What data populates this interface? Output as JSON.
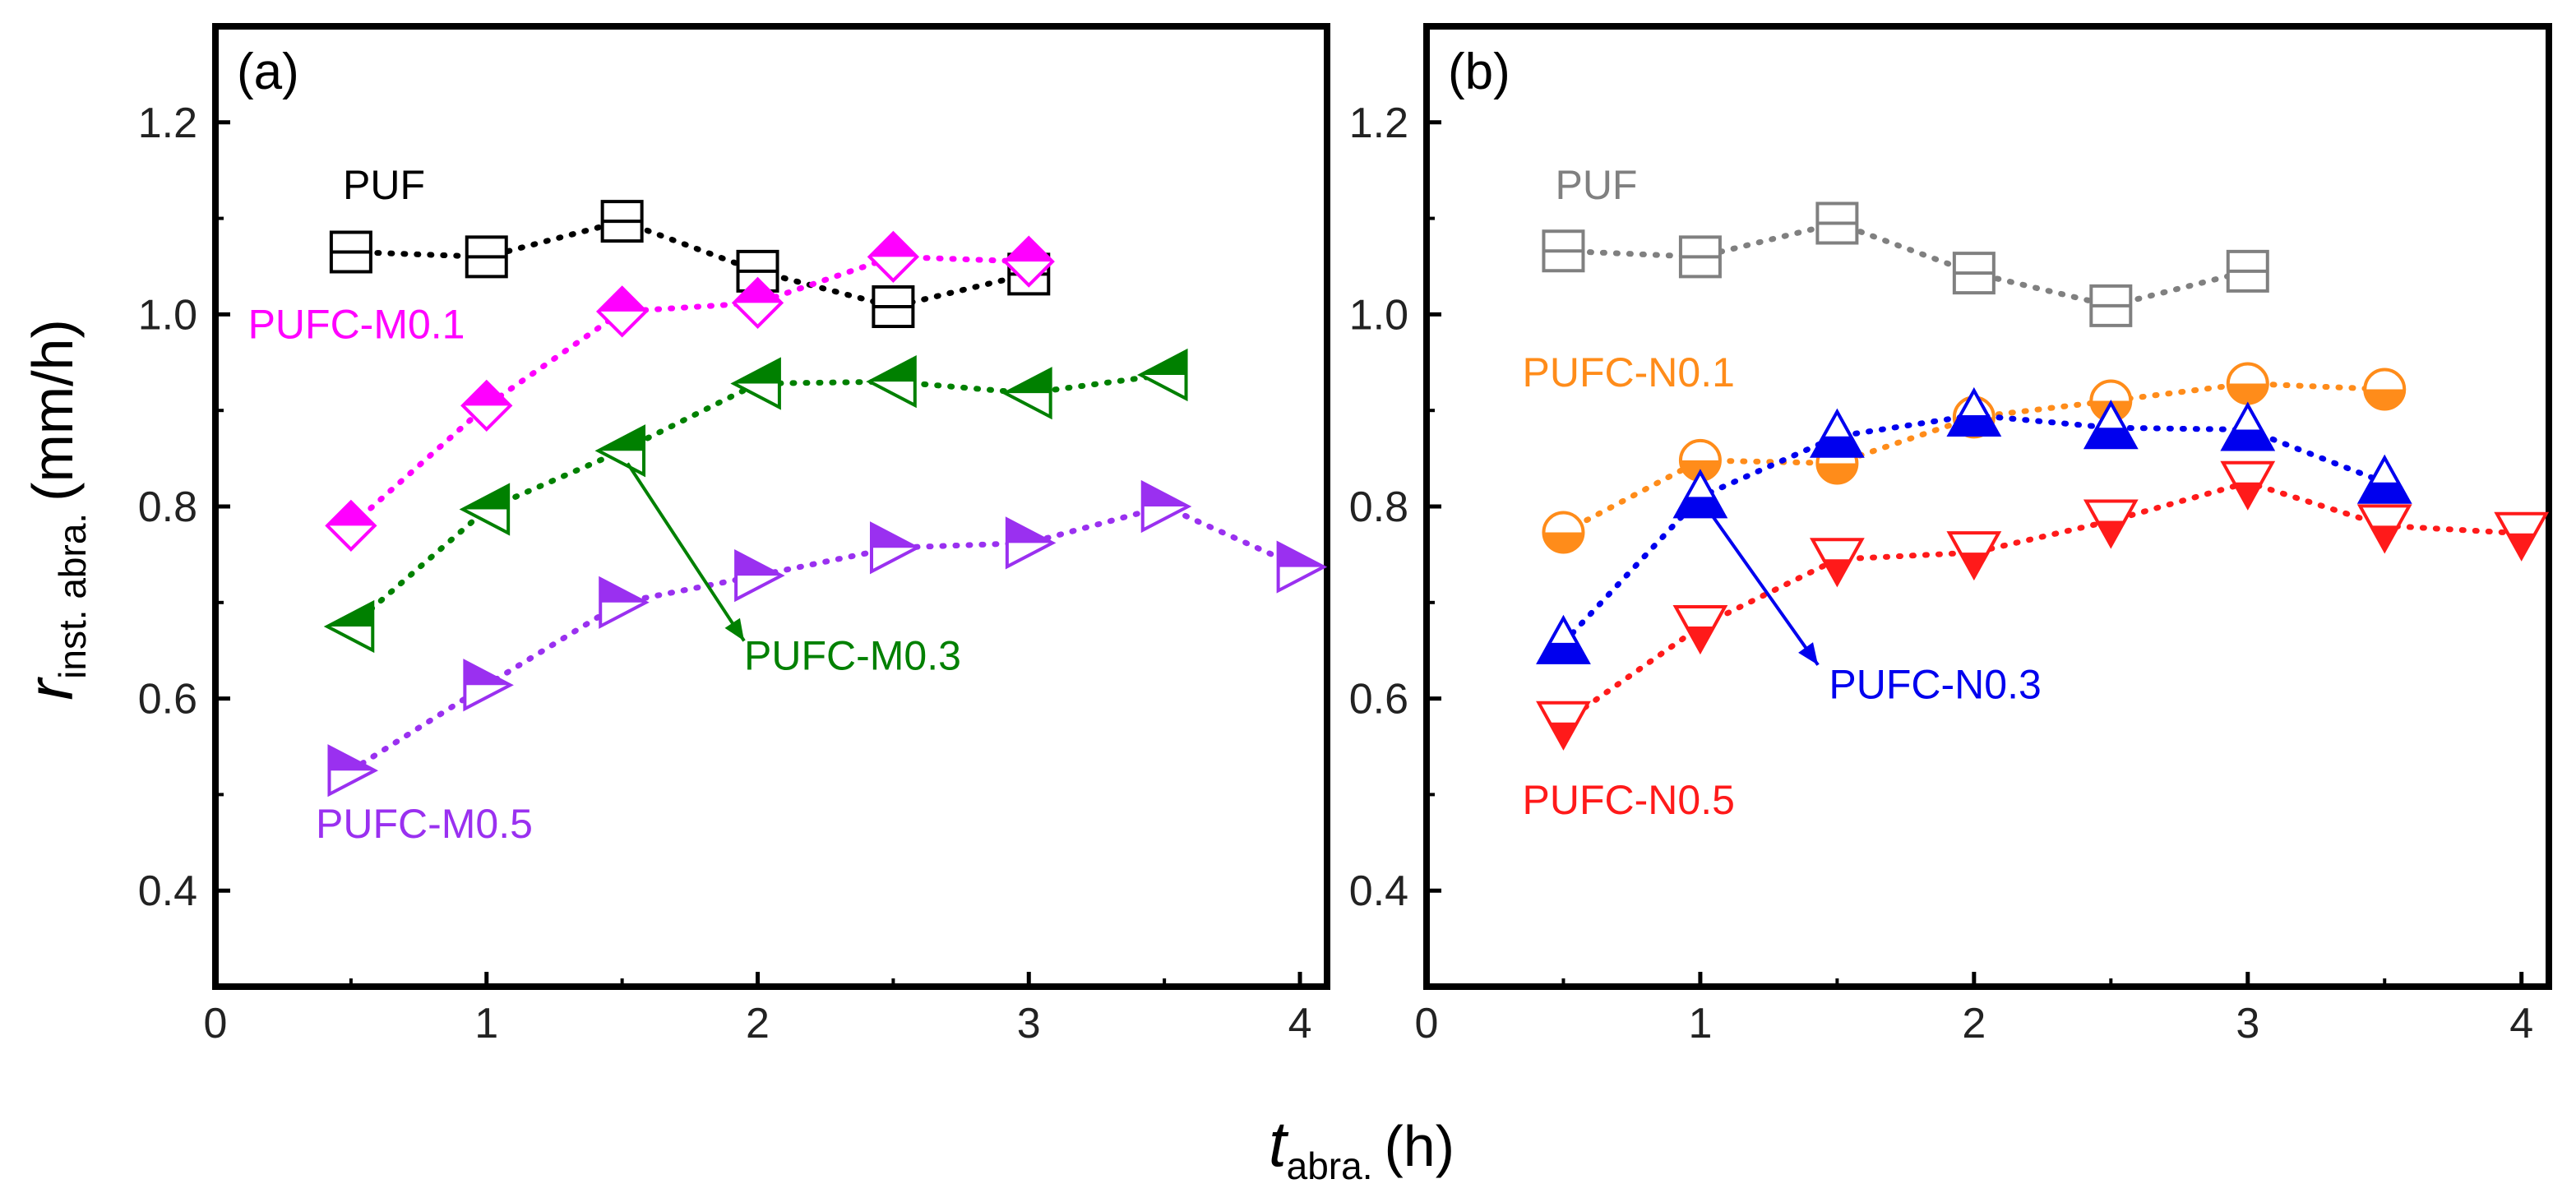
{
  "axes": {
    "y_label": {
      "var": "r",
      "sub": "inst. abra.",
      "unit": "(mm/h)"
    },
    "x_label": {
      "var": "t",
      "sub": "abra.",
      "unit": "(h)"
    }
  },
  "chart_data": [
    {
      "type": "scatter",
      "panel": "(a)",
      "xlim": [
        0,
        4.1
      ],
      "ylim": [
        0.3,
        1.3
      ],
      "xticks": [
        0,
        1,
        2,
        3,
        4
      ],
      "yticks": [
        0.4,
        0.6,
        0.8,
        1.0,
        1.2
      ],
      "ytick_labels": [
        "0.4",
        "0.6",
        "0.8",
        "1.0",
        "1.2"
      ],
      "grid": false,
      "series": [
        {
          "name": "PUF",
          "color": "#000000",
          "marker": "square-hline",
          "x": [
            0.5,
            1.0,
            1.5,
            2.0,
            2.5,
            3.0
          ],
          "y": [
            1.065,
            1.06,
            1.097,
            1.045,
            1.008,
            1.042
          ]
        },
        {
          "name": "PUFC-M0.1",
          "color": "#ff00ff",
          "marker": "diamond-tophalf",
          "x": [
            0.5,
            1.0,
            1.5,
            2.0,
            2.5,
            3.0
          ],
          "y": [
            0.78,
            0.905,
            1.003,
            1.012,
            1.06,
            1.055
          ]
        },
        {
          "name": "PUFC-M0.3",
          "color": "#008000",
          "marker": "tri-left-tophalf",
          "x": [
            0.5,
            1.0,
            1.5,
            2.0,
            2.5,
            3.0,
            3.5
          ],
          "y": [
            0.675,
            0.797,
            0.858,
            0.928,
            0.93,
            0.918,
            0.937
          ]
        },
        {
          "name": "PUFC-M0.5",
          "color": "#9a30f0",
          "marker": "tri-right-tophalf",
          "x": [
            0.5,
            1.0,
            1.5,
            2.0,
            2.5,
            3.0,
            3.5,
            4.0
          ],
          "y": [
            0.525,
            0.614,
            0.7,
            0.728,
            0.757,
            0.762,
            0.8,
            0.737
          ]
        }
      ],
      "annotations": [
        {
          "text": "PUF",
          "series": 0,
          "lx": 0.47,
          "ly": 1.12
        },
        {
          "text": "PUFC-M0.1",
          "series": 1,
          "lx": 0.12,
          "ly": 0.975
        },
        {
          "text": "PUFC-M0.3",
          "series": 2,
          "lx": 1.95,
          "ly": 0.63,
          "arrow_from": [
            1.52,
            0.845
          ],
          "arrow_to": [
            1.95,
            0.66
          ]
        },
        {
          "text": "PUFC-M0.5",
          "series": 3,
          "lx": 0.37,
          "ly": 0.455
        }
      ]
    },
    {
      "type": "scatter",
      "panel": "(b)",
      "xlim": [
        0,
        4.1
      ],
      "ylim": [
        0.3,
        1.3
      ],
      "xticks": [
        0,
        1,
        2,
        3,
        4
      ],
      "yticks": [
        0.4,
        0.6,
        0.8,
        1.0,
        1.2
      ],
      "ytick_labels": [
        "0.4",
        "0.6",
        "0.8",
        "1.0",
        "1.2"
      ],
      "grid": false,
      "series": [
        {
          "name": "PUF",
          "color": "#808080",
          "marker": "square-hline",
          "x": [
            0.5,
            1.0,
            1.5,
            2.0,
            2.5,
            3.0
          ],
          "y": [
            1.066,
            1.06,
            1.095,
            1.043,
            1.009,
            1.045
          ]
        },
        {
          "name": "PUFC-N0.1",
          "color": "#ff8c1a",
          "marker": "circle-bottomhalf",
          "x": [
            0.5,
            1.0,
            1.5,
            2.0,
            2.5,
            3.0,
            3.5
          ],
          "y": [
            0.773,
            0.848,
            0.845,
            0.893,
            0.91,
            0.928,
            0.922
          ]
        },
        {
          "name": "PUFC-N0.3",
          "color": "#0000ee",
          "marker": "tri-up-bottomhalf",
          "x": [
            0.5,
            1.0,
            1.5,
            2.0,
            2.5,
            3.0,
            3.5
          ],
          "y": [
            0.658,
            0.81,
            0.873,
            0.895,
            0.882,
            0.88,
            0.825
          ]
        },
        {
          "name": "PUFC-N0.5",
          "color": "#ff1a1a",
          "marker": "tri-down-bottomhalf",
          "x": [
            0.5,
            1.0,
            1.5,
            2.0,
            2.5,
            3.0,
            3.5,
            4.0
          ],
          "y": [
            0.575,
            0.675,
            0.745,
            0.752,
            0.785,
            0.825,
            0.78,
            0.772
          ]
        }
      ],
      "annotations": [
        {
          "text": "PUF",
          "series": 0,
          "lx": 0.47,
          "ly": 1.12
        },
        {
          "text": "PUFC-N0.1",
          "series": 1,
          "lx": 0.35,
          "ly": 0.925
        },
        {
          "text": "PUFC-N0.3",
          "series": 2,
          "lx": 1.47,
          "ly": 0.6,
          "arrow_from": [
            1.02,
            0.8
          ],
          "arrow_to": [
            1.43,
            0.635
          ]
        },
        {
          "text": "PUFC-N0.5",
          "series": 3,
          "lx": 0.35,
          "ly": 0.48
        }
      ]
    }
  ]
}
